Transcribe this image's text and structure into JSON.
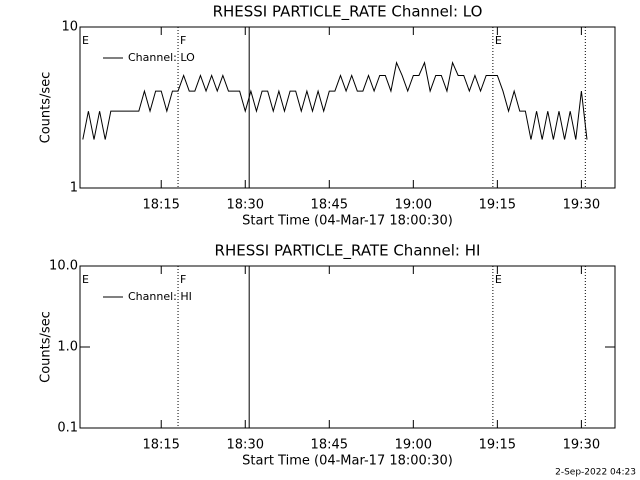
{
  "footer": "2-Sep-2022 04:23",
  "chart_data": [
    {
      "type": "line",
      "title": "RHESSI PARTICLE_RATE Channel: LO",
      "xlabel": "Start Time (04-Mar-17 18:00:30)",
      "ylabel": "Counts/sec",
      "log_y": true,
      "x": [
        1,
        2,
        3,
        4,
        5,
        6,
        7,
        8,
        9,
        10,
        11,
        12,
        13,
        14,
        15,
        16,
        17,
        18,
        19,
        20,
        21,
        22,
        23,
        24,
        25,
        26,
        27,
        28,
        29,
        30,
        31,
        32,
        33,
        34,
        35,
        36,
        37,
        38,
        39,
        40,
        41,
        42,
        43,
        44,
        45,
        46,
        47,
        48,
        49,
        50,
        51,
        52,
        53,
        54,
        55,
        56,
        57,
        58,
        59,
        60,
        61,
        62,
        63,
        64,
        65,
        66,
        67,
        68,
        69,
        70,
        71,
        72,
        73,
        74,
        75,
        76,
        77,
        78,
        79,
        80,
        81,
        82,
        83,
        84,
        85,
        86,
        87,
        88,
        89,
        90,
        91
      ],
      "series": [
        {
          "name": "Channel: LO",
          "color": "#000000",
          "values": [
            2,
            3,
            2,
            3,
            2,
            3,
            3,
            3,
            3,
            3,
            3,
            4,
            3,
            4,
            4,
            3,
            4,
            4,
            5,
            4,
            4,
            5,
            4,
            5,
            4,
            5,
            4,
            4,
            4,
            3,
            4,
            3,
            4,
            4,
            3,
            4,
            3,
            4,
            4,
            3,
            4,
            3,
            4,
            3,
            4,
            4,
            5,
            4,
            5,
            4,
            4,
            5,
            4,
            5,
            5,
            4,
            6,
            5,
            4,
            5,
            5,
            6,
            4,
            5,
            5,
            4,
            6,
            5,
            5,
            4,
            5,
            4,
            5,
            5,
            5,
            4,
            3,
            4,
            3,
            3,
            2,
            3,
            2,
            3,
            2,
            3,
            2,
            3,
            2,
            4,
            2
          ]
        }
      ],
      "xlim": [
        0.5,
        96
      ],
      "ylim": [
        1,
        10
      ],
      "xticks": [
        {
          "value": 15,
          "label": "18:15"
        },
        {
          "value": 30,
          "label": "18:30"
        },
        {
          "value": 45,
          "label": "18:45"
        },
        {
          "value": 60,
          "label": "19:00"
        },
        {
          "value": 75,
          "label": "19:15"
        },
        {
          "value": 90,
          "label": "19:30"
        }
      ],
      "yticks": [
        1,
        10
      ],
      "vlines": [
        {
          "x": 18,
          "style": "dotted"
        },
        {
          "x": 30.7,
          "style": "solid"
        },
        {
          "x": 74.2,
          "style": "dotted"
        },
        {
          "x": 90.7,
          "style": "dotted"
        }
      ],
      "flags": [
        {
          "x": 0.5,
          "label": "E"
        },
        {
          "x": 18,
          "label": "F"
        },
        {
          "x": 74.2,
          "label": "E"
        }
      ]
    },
    {
      "type": "line",
      "title": "RHESSI PARTICLE_RATE Channel: HI",
      "xlabel": "Start Time (04-Mar-17 18:00:30)",
      "ylabel": "Counts/sec",
      "log_y": true,
      "x": [],
      "series": [
        {
          "name": "Channel: HI",
          "color": "#000000",
          "values": []
        }
      ],
      "xlim": [
        0.5,
        96
      ],
      "ylim": [
        0.1,
        10
      ],
      "xticks": [
        {
          "value": 15,
          "label": "18:15"
        },
        {
          "value": 30,
          "label": "18:30"
        },
        {
          "value": 45,
          "label": "18:45"
        },
        {
          "value": 60,
          "label": "19:00"
        },
        {
          "value": 75,
          "label": "19:15"
        },
        {
          "value": 90,
          "label": "19:30"
        }
      ],
      "yticks": [
        0.1,
        {
          "value": 1,
          "label": "1.0"
        },
        {
          "value": 10,
          "label": "10.0"
        }
      ],
      "vlines": [
        {
          "x": 18,
          "style": "dotted"
        },
        {
          "x": 30.7,
          "style": "solid"
        },
        {
          "x": 74.2,
          "style": "dotted"
        },
        {
          "x": 90.7,
          "style": "dotted"
        }
      ],
      "flags": [
        {
          "x": 0.5,
          "label": "E"
        },
        {
          "x": 18,
          "label": "F"
        },
        {
          "x": 74.2,
          "label": "E"
        }
      ]
    }
  ]
}
